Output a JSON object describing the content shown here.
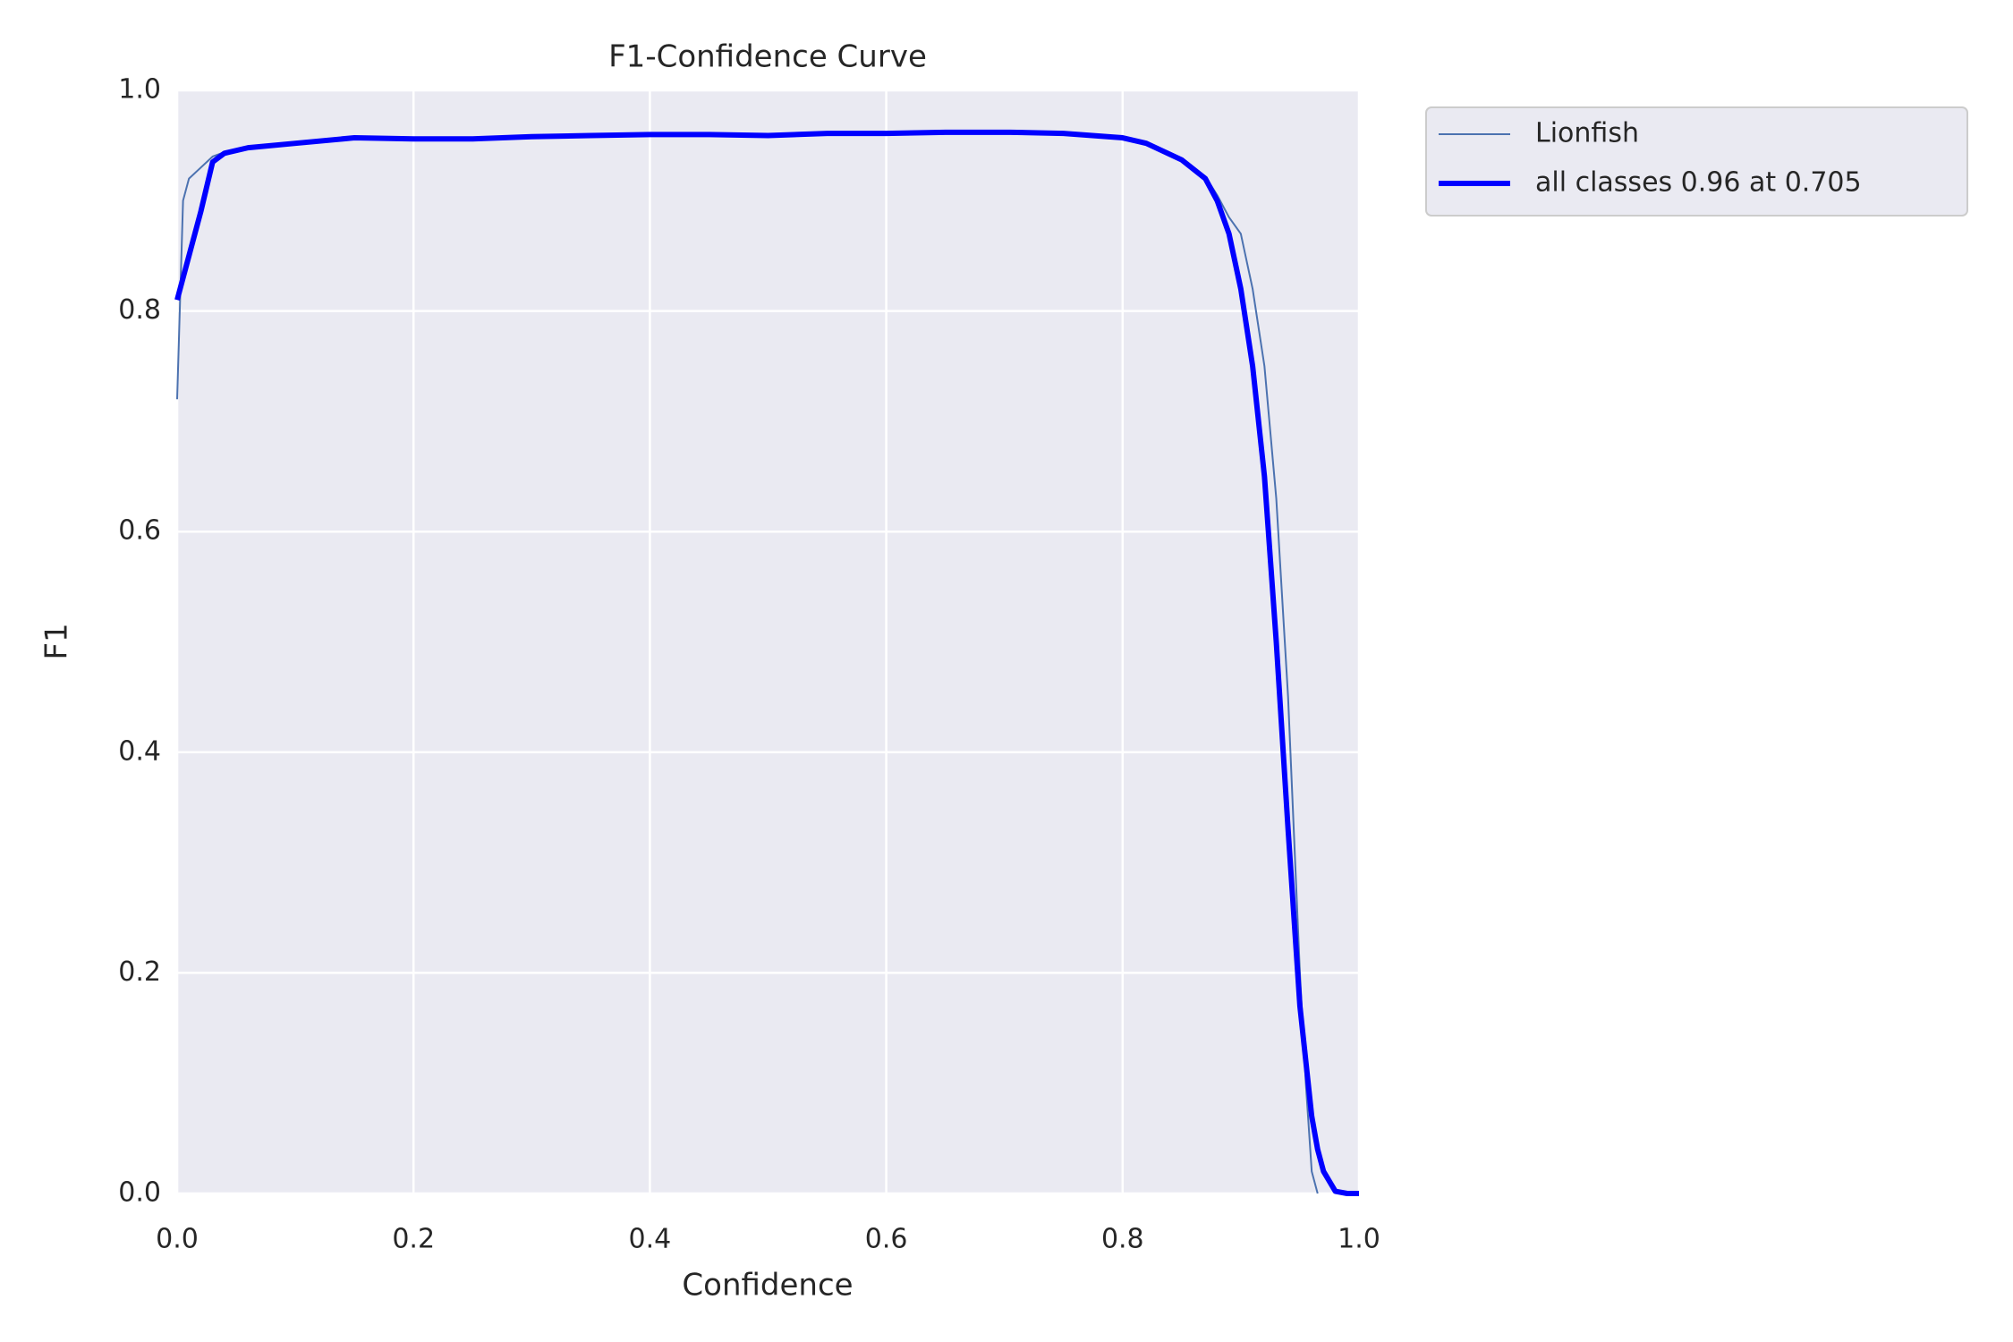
{
  "chart_data": {
    "type": "line",
    "title": "F1-Confidence Curve",
    "xlabel": "Confidence",
    "ylabel": "F1",
    "xlim": [
      0,
      1
    ],
    "ylim": [
      0,
      1
    ],
    "xticks": [
      {
        "value": 0,
        "label": "0.0"
      },
      0.2,
      0.4,
      0.6,
      0.8,
      {
        "value": 1,
        "label": "1.0"
      }
    ],
    "yticks": [
      {
        "value": 0,
        "label": "0.0"
      },
      0.2,
      0.4,
      0.6,
      0.8,
      {
        "value": 1,
        "label": "1.0"
      }
    ],
    "grid": true,
    "legend": "outside upper right",
    "x": [
      0,
      0.005,
      0.01,
      0.02,
      0.03,
      0.04,
      0.06,
      0.1,
      0.15,
      0.2,
      0.25,
      0.3,
      0.35,
      0.4,
      0.45,
      0.5,
      0.55,
      0.6,
      0.65,
      0.705,
      0.75,
      0.8,
      0.82,
      0.85,
      0.87,
      0.88,
      0.89,
      0.9,
      0.91,
      0.92,
      0.93,
      0.94,
      0.95,
      0.955,
      0.96,
      0.965,
      0.97,
      0.98,
      0.99,
      1.0
    ],
    "series": [
      {
        "name": "Lionfish",
        "color": "#4c72b0",
        "width": 2,
        "values": [
          0.72,
          0.9,
          0.92,
          0.93,
          0.94,
          0.944,
          0.948,
          0.952,
          0.957,
          0.956,
          0.956,
          0.958,
          0.959,
          0.96,
          0.96,
          0.959,
          0.961,
          0.961,
          0.962,
          0.962,
          0.961,
          0.957,
          0.952,
          0.938,
          0.922,
          0.905,
          0.885,
          0.87,
          0.82,
          0.75,
          0.63,
          0.45,
          0.2,
          0.1,
          0.02,
          0.0,
          null,
          null,
          null,
          null
        ]
      },
      {
        "name": "all classes 0.96 at 0.705",
        "color": "#0000ff",
        "width": 6,
        "values": [
          0.81,
          0.83,
          0.85,
          0.89,
          0.935,
          0.943,
          0.948,
          0.952,
          0.957,
          0.956,
          0.956,
          0.958,
          0.959,
          0.96,
          0.96,
          0.959,
          0.961,
          0.961,
          0.962,
          0.962,
          0.961,
          0.957,
          0.952,
          0.937,
          0.92,
          0.9,
          0.87,
          0.82,
          0.75,
          0.65,
          0.5,
          0.33,
          0.17,
          0.12,
          0.07,
          0.04,
          0.02,
          0.002,
          0,
          0
        ]
      }
    ]
  }
}
